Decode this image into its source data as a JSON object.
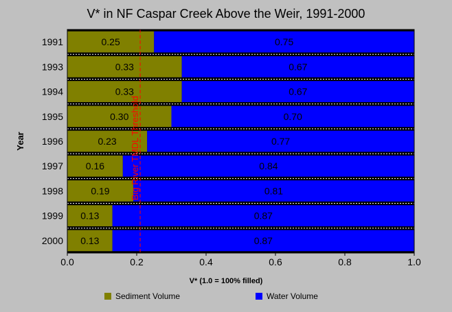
{
  "chart_data": {
    "type": "bar",
    "orientation": "horizontal",
    "stacked": true,
    "title": "V* in NF Caspar Creek Above the Weir, 1991-2000",
    "xlabel": "V* (1.0 = 100% filled)",
    "ylabel": "Year",
    "xlim": [
      0,
      1
    ],
    "xticks": [
      "0.0",
      "0.2",
      "0.4",
      "0.6",
      "0.8",
      "1.0"
    ],
    "categories": [
      "1991",
      "1993",
      "1994",
      "1995",
      "1996",
      "1997",
      "1998",
      "1999",
      "2000"
    ],
    "series": [
      {
        "name": "Sediment Volume",
        "color": "#808000",
        "values": [
          0.25,
          0.33,
          0.33,
          0.3,
          0.23,
          0.16,
          0.19,
          0.13,
          0.13
        ],
        "labels": [
          "0.25",
          "0.33",
          "0.33",
          "0.30",
          "0.23",
          "0.16",
          "0.19",
          "0.13",
          "0.13"
        ]
      },
      {
        "name": "Water Volume",
        "color": "#0000ff",
        "values": [
          0.75,
          0.67,
          0.67,
          0.7,
          0.77,
          0.84,
          0.81,
          0.87,
          0.87
        ],
        "labels": [
          "0.75",
          "0.67",
          "0.67",
          "0.70",
          "0.77",
          "0.84",
          "0.81",
          "0.87",
          "0.87"
        ]
      }
    ],
    "threshold": {
      "value": 0.21,
      "label": "Big River TMDL Threshold",
      "color": "#ff0000"
    },
    "grid": false,
    "legend_position": "bottom"
  }
}
